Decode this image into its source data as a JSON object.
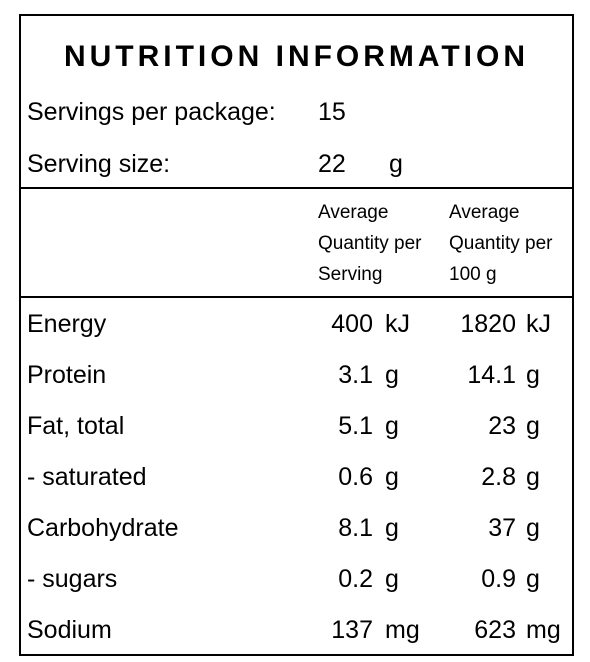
{
  "title": "NUTRITION INFORMATION",
  "servings_per_package": {
    "label": "Servings per package:",
    "value": "15"
  },
  "serving_size": {
    "label": "Serving size:",
    "value": "22",
    "unit": "g"
  },
  "columns": [
    "Average\nQuantity per\nServing",
    "Average\nQuantity per\n100 g"
  ],
  "rows": [
    {
      "name": "Energy",
      "serving": "400",
      "serving_unit": "kJ",
      "per100": "1820",
      "per100_unit": "kJ"
    },
    {
      "name": "Protein",
      "serving": "3.1",
      "serving_unit": "g",
      "per100": "14.1",
      "per100_unit": "g"
    },
    {
      "name": "Fat, total",
      "serving": "5.1",
      "serving_unit": "g",
      "per100": "23",
      "per100_unit": "g"
    },
    {
      "name": "- saturated",
      "serving": "0.6",
      "serving_unit": "g",
      "per100": "2.8",
      "per100_unit": "g"
    },
    {
      "name": "Carbohydrate",
      "serving": "8.1",
      "serving_unit": "g",
      "per100": "37",
      "per100_unit": "g"
    },
    {
      "name": "- sugars",
      "serving": "0.2",
      "serving_unit": "g",
      "per100": "0.9",
      "per100_unit": "g"
    },
    {
      "name": "Sodium",
      "serving": "137",
      "serving_unit": "mg",
      "per100": "623",
      "per100_unit": "mg"
    }
  ]
}
